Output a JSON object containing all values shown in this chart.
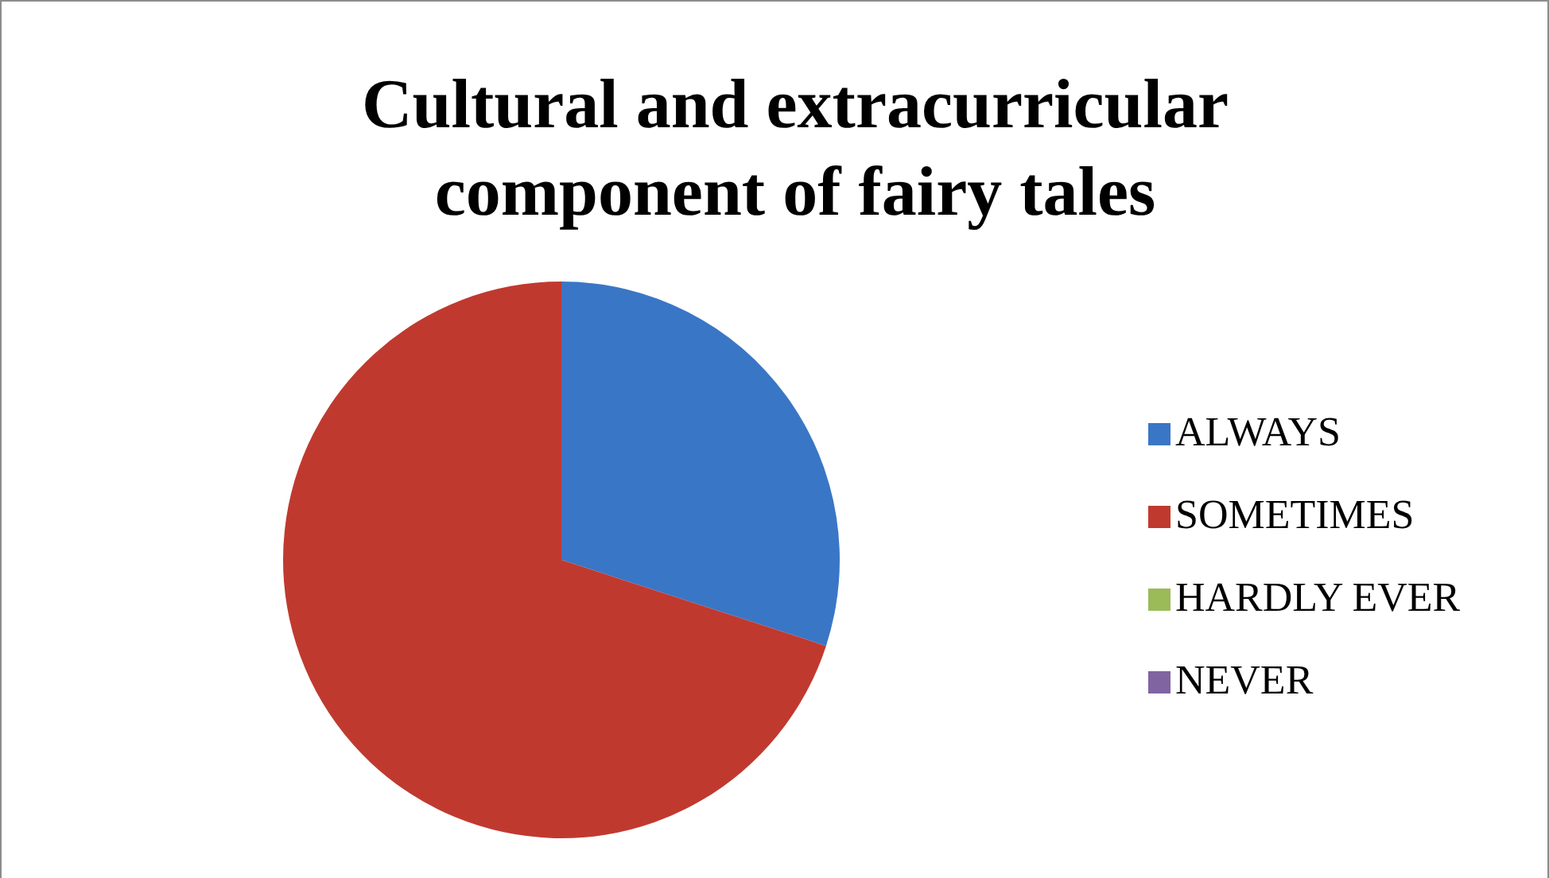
{
  "chart_data": {
    "type": "pie",
    "title": "Cultural and extracurricular component of fairy tales",
    "categories": [
      "ALWAYS",
      "SOMETIMES",
      "HARDLY EVER",
      "NEVER"
    ],
    "values": [
      30,
      70,
      0,
      0
    ],
    "colors": [
      "#3a76c6",
      "#c0392f",
      "#9bbb59",
      "#8064a2"
    ],
    "legend": "right"
  }
}
